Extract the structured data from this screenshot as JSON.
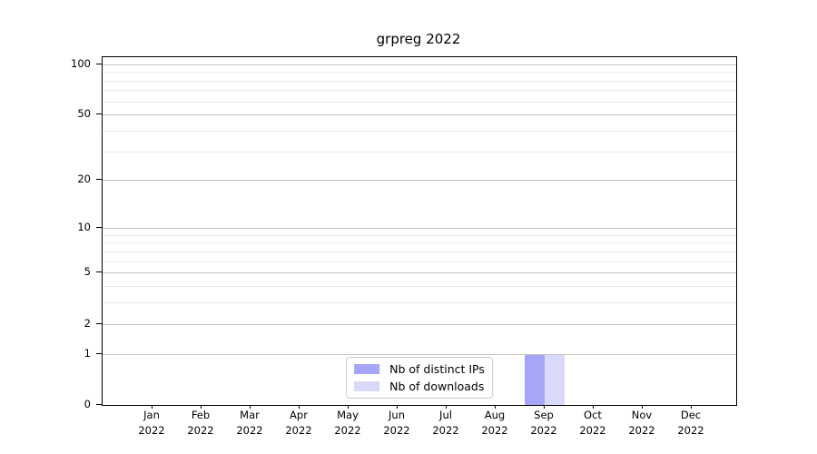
{
  "chart_data": {
    "type": "bar",
    "title": "grpreg 2022",
    "year_label": "2022",
    "categories": [
      "Jan",
      "Feb",
      "Mar",
      "Apr",
      "May",
      "Jun",
      "Jul",
      "Aug",
      "Sep",
      "Oct",
      "Nov",
      "Dec"
    ],
    "series": [
      {
        "name": "Nb of distinct IPs",
        "color": "#a6a6f8",
        "values": [
          0,
          0,
          0,
          0,
          0,
          0,
          0,
          0,
          1,
          0,
          0,
          0
        ]
      },
      {
        "name": "Nb of downloads",
        "color": "#d9d9fa",
        "values": [
          0,
          0,
          0,
          0,
          0,
          0,
          0,
          0,
          1,
          0,
          0,
          0
        ]
      }
    ],
    "xlabel": "",
    "ylabel": "",
    "yscale": "log1p",
    "ylim": [
      0,
      110
    ],
    "yticks": [
      0,
      1,
      2,
      5,
      10,
      20,
      50,
      100
    ],
    "yticks_minor": [
      3,
      4,
      6,
      7,
      8,
      9,
      30,
      40,
      60,
      70,
      80,
      90
    ],
    "grid": true,
    "legend_position": "lower center"
  },
  "colors": {
    "bar_distinct_ips": "#a6a6f8",
    "bar_downloads": "#d9d9fa",
    "major_grid": "#c3c3c3",
    "minor_grid": "#ebebeb",
    "spine": "#000000",
    "legend_border": "#cccccc",
    "text": "#000000",
    "background": "#ffffff"
  }
}
